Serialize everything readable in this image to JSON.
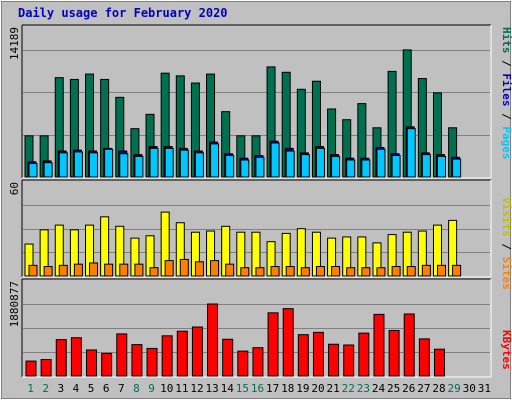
{
  "title": "Daily usage for February 2020",
  "colors": {
    "background": "#c0c0c0",
    "panel": "#c0c0c0",
    "grid": "#808080",
    "hits": "#007050",
    "files": "#00c8ff",
    "pages": "#00a8d8",
    "visits": "#ffff00",
    "sites": "#ff8000",
    "kbytes": "#ff0000",
    "weekend_day": "#007050",
    "weekday": "#000000"
  },
  "legend": {
    "hits": "Hits",
    "files": "Files",
    "pages": "Pages",
    "visits": "Visits",
    "sites": "Sites",
    "kbytes": "KBytes",
    "sep": "/"
  },
  "chart_data": {
    "type": "bar",
    "title": "Daily usage for February 2020",
    "categories": [
      "1",
      "2",
      "3",
      "4",
      "5",
      "6",
      "7",
      "8",
      "9",
      "10",
      "11",
      "12",
      "13",
      "14",
      "15",
      "16",
      "17",
      "18",
      "19",
      "20",
      "21",
      "22",
      "23",
      "24",
      "25",
      "26",
      "27",
      "28",
      "29",
      "30",
      "31"
    ],
    "weekend_days": [
      "1",
      "2",
      "8",
      "9",
      "15",
      "16",
      "22",
      "23",
      "29"
    ],
    "panels": [
      {
        "name": "hits-files-pages",
        "ymax_label": "14189",
        "ymax": 14189,
        "series": [
          {
            "name": "Hits",
            "values": [
              4600,
              4600,
              11100,
              10900,
              11500,
              10900,
              8900,
              5400,
              7000,
              11600,
              11300,
              10500,
              11500,
              7300,
              4600,
              4600,
              12300,
              11700,
              9800,
              10700,
              7600,
              6400,
              8200,
              5500,
              11800,
              14200,
              11000,
              9400,
              5500,
              0,
              0
            ]
          },
          {
            "name": "Files",
            "values": [
              1700,
              1800,
              2900,
              3000,
              2900,
              3200,
              2900,
              2500,
              3400,
              3400,
              3200,
              2900,
              3900,
              2600,
              2100,
              2400,
              4000,
              3200,
              2700,
              3400,
              2500,
              2100,
              2100,
              3300,
              2600,
              5600,
              2700,
              2500,
              2200,
              0,
              0
            ]
          },
          {
            "name": "Pages",
            "values": [
              1500,
              1600,
              2700,
              2800,
              2700,
              3100,
              2600,
              2300,
              3200,
              3200,
              3000,
              2700,
              3700,
              2400,
              1900,
              2200,
              3800,
              2900,
              2500,
              3200,
              2300,
              1900,
              1900,
              3100,
              2400,
              5400,
              2500,
              2300,
              2000,
              0,
              0
            ]
          }
        ]
      },
      {
        "name": "visits-sites",
        "ymax_label": "60",
        "ymax": 60,
        "series": [
          {
            "name": "Visits",
            "values": [
              27,
              39,
              43,
              39,
              43,
              50,
              42,
              32,
              34,
              54,
              45,
              37,
              38,
              42,
              37,
              37,
              29,
              36,
              40,
              37,
              32,
              33,
              33,
              28,
              35,
              37,
              38,
              43,
              47,
              0,
              0
            ]
          },
          {
            "name": "Sites",
            "values": [
              9,
              8,
              9,
              10,
              11,
              10,
              10,
              10,
              7,
              13,
              14,
              12,
              13,
              10,
              7,
              7,
              8,
              8,
              7,
              8,
              8,
              7,
              7,
              7,
              8,
              8,
              9,
              9,
              9,
              0,
              0
            ]
          }
        ]
      },
      {
        "name": "kbytes",
        "ymax_label": "1880877",
        "ymax": 1880877,
        "series": [
          {
            "name": "KBytes",
            "values": [
              390000,
              430000,
              950000,
              1000000,
              680000,
              590000,
              1100000,
              820000,
              720000,
              1050000,
              1170000,
              1280000,
              1880877,
              960000,
              650000,
              740000,
              1650000,
              1760000,
              1080000,
              1140000,
              830000,
              810000,
              1120000,
              1610000,
              1190000,
              1620000,
              970000,
              700000,
              0,
              0,
              0
            ]
          }
        ]
      }
    ]
  }
}
